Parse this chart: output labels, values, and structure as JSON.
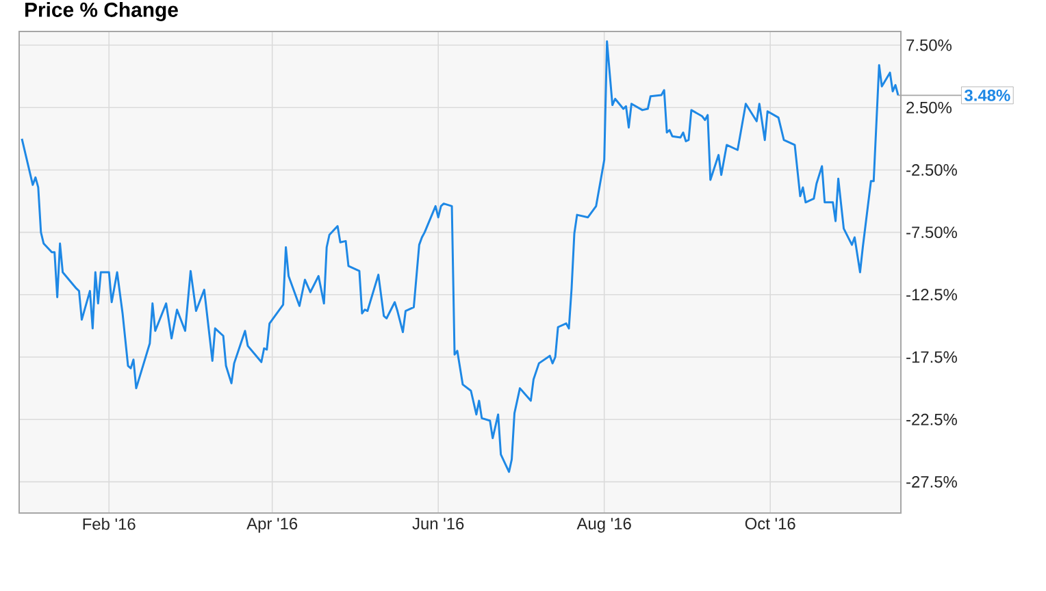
{
  "chart_data": {
    "type": "line",
    "title": "Price % Change",
    "x": [
      "2015-12-31",
      "2016-01-04",
      "2016-01-05",
      "2016-01-06",
      "2016-01-07",
      "2016-01-08",
      "2016-01-11",
      "2016-01-12",
      "2016-01-13",
      "2016-01-14",
      "2016-01-15",
      "2016-01-20",
      "2016-01-21",
      "2016-01-22",
      "2016-01-25",
      "2016-01-26",
      "2016-01-27",
      "2016-01-28",
      "2016-01-29",
      "2016-02-01",
      "2016-02-02",
      "2016-02-04",
      "2016-02-06",
      "2016-02-08",
      "2016-02-09",
      "2016-02-10",
      "2016-02-11",
      "2016-02-16",
      "2016-02-17",
      "2016-02-18",
      "2016-02-22",
      "2016-02-24",
      "2016-02-26",
      "2016-02-29",
      "2016-03-02",
      "2016-03-04",
      "2016-03-07",
      "2016-03-10",
      "2016-03-11",
      "2016-03-14",
      "2016-03-15",
      "2016-03-17",
      "2016-03-18",
      "2016-03-22",
      "2016-03-23",
      "2016-03-28",
      "2016-03-29",
      "2016-03-30",
      "2016-03-31",
      "2016-04-05",
      "2016-04-06",
      "2016-04-07",
      "2016-04-11",
      "2016-04-13",
      "2016-04-15",
      "2016-04-18",
      "2016-04-20",
      "2016-04-21",
      "2016-04-22",
      "2016-04-25",
      "2016-04-26",
      "2016-04-28",
      "2016-04-29",
      "2016-05-03",
      "2016-05-04",
      "2016-05-05",
      "2016-05-06",
      "2016-05-10",
      "2016-05-12",
      "2016-05-13",
      "2016-05-16",
      "2016-05-17",
      "2016-05-19",
      "2016-05-20",
      "2016-05-23",
      "2016-05-25",
      "2016-05-26",
      "2016-05-27",
      "2016-05-31",
      "2016-06-01",
      "2016-06-02",
      "2016-06-03",
      "2016-06-06",
      "2016-06-07",
      "2016-06-08",
      "2016-06-10",
      "2016-06-13",
      "2016-06-15",
      "2016-06-16",
      "2016-06-17",
      "2016-06-20",
      "2016-06-21",
      "2016-06-23",
      "2016-06-24",
      "2016-06-27",
      "2016-06-28",
      "2016-06-29",
      "2016-07-01",
      "2016-07-05",
      "2016-07-06",
      "2016-07-08",
      "2016-07-12",
      "2016-07-13",
      "2016-07-14",
      "2016-07-15",
      "2016-07-18",
      "2016-07-19",
      "2016-07-20",
      "2016-07-21",
      "2016-07-22",
      "2016-07-26",
      "2016-07-29",
      "2016-08-01",
      "2016-08-02",
      "2016-08-04",
      "2016-08-05",
      "2016-08-08",
      "2016-08-09",
      "2016-08-10",
      "2016-08-11",
      "2016-08-15",
      "2016-08-17",
      "2016-08-18",
      "2016-08-22",
      "2016-08-23",
      "2016-08-24",
      "2016-08-25",
      "2016-08-26",
      "2016-08-29",
      "2016-08-30",
      "2016-08-31",
      "2016-09-01",
      "2016-09-02",
      "2016-09-06",
      "2016-09-07",
      "2016-09-08",
      "2016-09-09",
      "2016-09-12",
      "2016-09-13",
      "2016-09-15",
      "2016-09-19",
      "2016-09-22",
      "2016-09-26",
      "2016-09-27",
      "2016-09-29",
      "2016-09-30",
      "2016-10-04",
      "2016-10-06",
      "2016-10-10",
      "2016-10-12",
      "2016-10-13",
      "2016-10-14",
      "2016-10-17",
      "2016-10-18",
      "2016-10-20",
      "2016-10-21",
      "2016-10-24",
      "2016-10-25",
      "2016-10-26",
      "2016-10-28",
      "2016-10-31",
      "2016-11-01",
      "2016-11-03",
      "2016-11-04",
      "2016-11-07",
      "2016-11-08",
      "2016-11-10",
      "2016-11-11",
      "2016-11-14",
      "2016-11-15",
      "2016-11-16",
      "2016-11-17"
    ],
    "series": [
      {
        "color": "#1e88e5",
        "values": [
          0,
          -3.7,
          -3.1,
          -3.9,
          -7.5,
          -8.4,
          -9.1,
          -9.1,
          -12.7,
          -8.4,
          -10.7,
          -12.0,
          -12.2,
          -14.5,
          -12.2,
          -15.2,
          -10.7,
          -13.2,
          -10.7,
          -10.7,
          -13.1,
          -10.7,
          -14.0,
          -18.2,
          -18.4,
          -17.7,
          -20.0,
          -16.4,
          -13.2,
          -15.4,
          -13.2,
          -16.0,
          -13.7,
          -15.4,
          -10.6,
          -13.8,
          -12.1,
          -17.8,
          -15.2,
          -15.8,
          -18.2,
          -19.6,
          -18.0,
          -15.4,
          -16.6,
          -17.9,
          -16.8,
          -16.9,
          -14.8,
          -13.3,
          -8.7,
          -11.0,
          -13.4,
          -11.3,
          -12.3,
          -11.0,
          -13.2,
          -8.7,
          -7.7,
          -7.0,
          -8.3,
          -8.2,
          -10.2,
          -10.6,
          -14.0,
          -13.7,
          -13.8,
          -10.9,
          -14.2,
          -14.4,
          -13.1,
          -13.8,
          -15.5,
          -13.8,
          -13.5,
          -8.5,
          -7.9,
          -7.5,
          -5.4,
          -6.3,
          -5.4,
          -5.2,
          -5.4,
          -17.3,
          -17.0,
          -19.7,
          -20.2,
          -22.1,
          -21.0,
          -22.4,
          -22.6,
          -24.0,
          -22.1,
          -25.3,
          -26.7,
          -25.7,
          -22.0,
          -20.0,
          -21.0,
          -19.3,
          -18.0,
          -17.4,
          -18.0,
          -17.5,
          -15.1,
          -14.8,
          -15.2,
          -12.0,
          -7.6,
          -6.1,
          -6.3,
          -5.4,
          -1.7,
          7.8,
          2.7,
          3.2,
          2.4,
          2.6,
          0.9,
          2.8,
          2.3,
          2.4,
          3.4,
          3.5,
          3.9,
          0.5,
          0.7,
          0.2,
          0.1,
          0.5,
          -0.2,
          -0.1,
          2.3,
          1.8,
          1.5,
          1.9,
          -3.3,
          -1.3,
          -2.9,
          -0.5,
          -0.9,
          2.8,
          1.4,
          2.8,
          -0.1,
          2.2,
          1.7,
          -0.1,
          -0.5,
          -4.6,
          -3.9,
          -5.1,
          -4.8,
          -3.6,
          -2.2,
          -5.1,
          -5.1,
          -6.6,
          -3.2,
          -7.2,
          -8.5,
          -7.9,
          -10.7,
          -8.7,
          -3.4,
          -3.4,
          5.9,
          4.2,
          5.3,
          3.8,
          4.3,
          3.48
        ]
      }
    ],
    "xlim": [
      "2015-12-30",
      "2016-11-18"
    ],
    "xticks": [
      {
        "value": "2016-02-01",
        "label": "Feb '16"
      },
      {
        "value": "2016-04-01",
        "label": "Apr '16"
      },
      {
        "value": "2016-06-01",
        "label": "Jun '16"
      },
      {
        "value": "2016-08-01",
        "label": "Aug '16"
      },
      {
        "value": "2016-10-01",
        "label": "Oct '16"
      }
    ],
    "ylim": [
      -30,
      8.6
    ],
    "yticks": [
      {
        "value": 7.5,
        "label": "7.50%"
      },
      {
        "value": 2.5,
        "label": "2.50%"
      },
      {
        "value": -2.5,
        "label": "-2.50%"
      },
      {
        "value": -7.5,
        "label": "-7.50%"
      },
      {
        "value": -12.5,
        "label": "-12.5%"
      },
      {
        "value": -17.5,
        "label": "-17.5%"
      },
      {
        "value": -22.5,
        "label": "-22.5%"
      },
      {
        "value": -27.5,
        "label": "-27.5%"
      }
    ],
    "grid": true,
    "annotations": [
      {
        "text": "3.48%",
        "x": "2016-11-17",
        "y": 3.48
      }
    ]
  }
}
